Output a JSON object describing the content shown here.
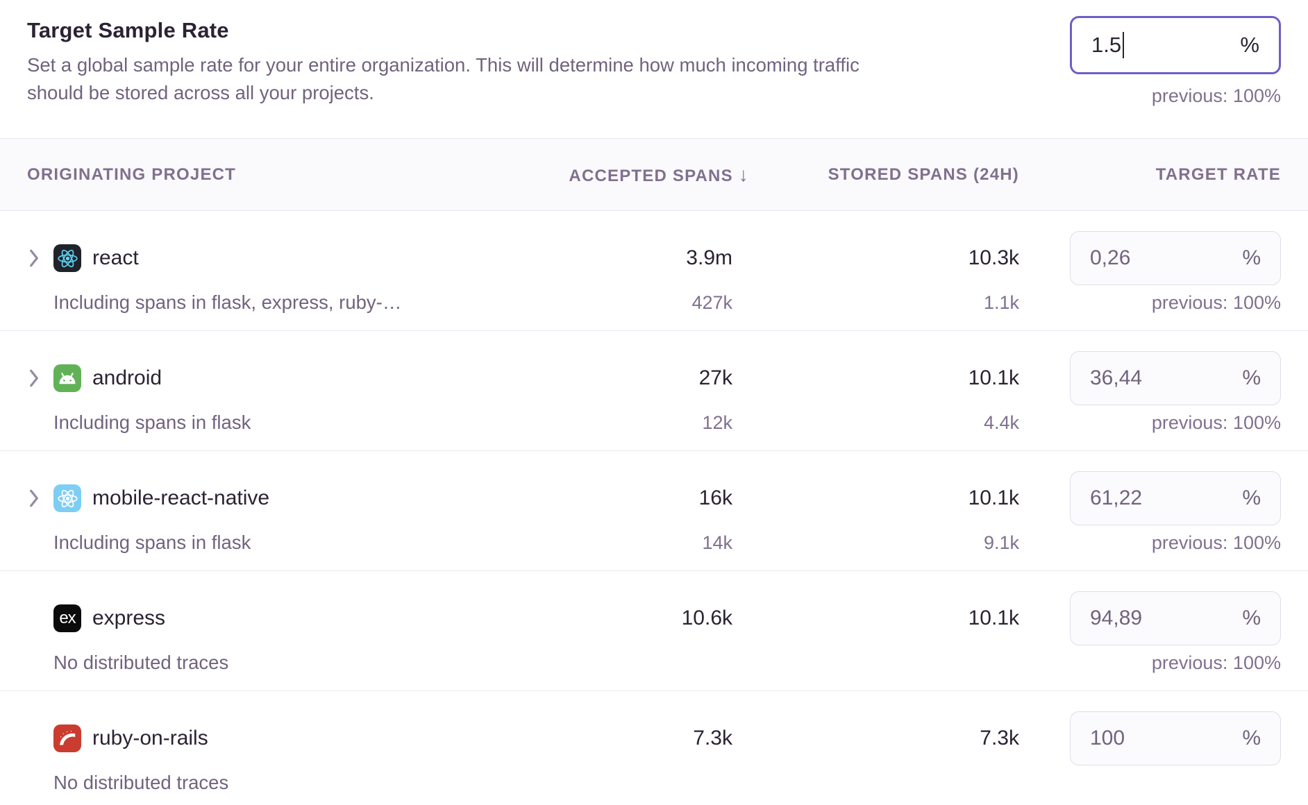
{
  "header": {
    "title": "Target Sample Rate",
    "description_lines": [
      "Set a global sample rate for your entire organization. This will determine how much incoming traffic",
      "should be stored across all your projects."
    ],
    "input": {
      "value": "1.5",
      "suffix": "%",
      "previous": "previous: 100%"
    }
  },
  "table": {
    "columns": [
      {
        "label": "ORIGINATING PROJECT"
      },
      {
        "label": "ACCEPTED SPANS",
        "sort": "↓"
      },
      {
        "label": "STORED SPANS (24H)"
      },
      {
        "label": "TARGET RATE"
      }
    ],
    "rows": [
      {
        "name": "react",
        "platform": "react",
        "icon": "react-logo-icon",
        "expandable": true,
        "subtitle": "Including spans in flask, express, ruby-…",
        "accepted": "3.9m",
        "accepted_sub": "427k",
        "stored": "10.3k",
        "stored_sub": "1.1k",
        "rate": "0,26",
        "rate_suffix": "%",
        "previous": "previous: 100%"
      },
      {
        "name": "android",
        "platform": "android",
        "icon": "android-logo-icon",
        "expandable": true,
        "subtitle": "Including spans in flask",
        "accepted": "27k",
        "accepted_sub": "12k",
        "stored": "10.1k",
        "stored_sub": "4.4k",
        "rate": "36,44",
        "rate_suffix": "%",
        "previous": "previous: 100%"
      },
      {
        "name": "mobile-react-native",
        "platform": "react-native",
        "icon": "react-native-logo-icon",
        "expandable": true,
        "subtitle": "Including spans in flask",
        "accepted": "16k",
        "accepted_sub": "14k",
        "stored": "10.1k",
        "stored_sub": "9.1k",
        "rate": "61,22",
        "rate_suffix": "%",
        "previous": "previous: 100%"
      },
      {
        "name": "express",
        "platform": "express",
        "icon": "express-logo-icon",
        "expandable": false,
        "subtitle": "No distributed traces",
        "accepted": "10.6k",
        "accepted_sub": "",
        "stored": "10.1k",
        "stored_sub": "",
        "rate": "94,89",
        "rate_suffix": "%",
        "previous": "previous: 100%"
      },
      {
        "name": "ruby-on-rails",
        "platform": "rails",
        "icon": "rails-logo-icon",
        "expandable": false,
        "subtitle": "No distributed traces",
        "accepted": "7.3k",
        "accepted_sub": "",
        "stored": "7.3k",
        "stored_sub": "",
        "rate": "100",
        "rate_suffix": "%",
        "previous": ""
      }
    ]
  },
  "colors": {
    "focus_border": "#6c5fc7",
    "react_bg": "#20232a",
    "react_atom": "#5ed3f3",
    "android_bg": "#61b257",
    "react_native_bg": "#7ccef4",
    "express_bg": "#0b0b0b",
    "rails_bg": "#cb3c30"
  }
}
